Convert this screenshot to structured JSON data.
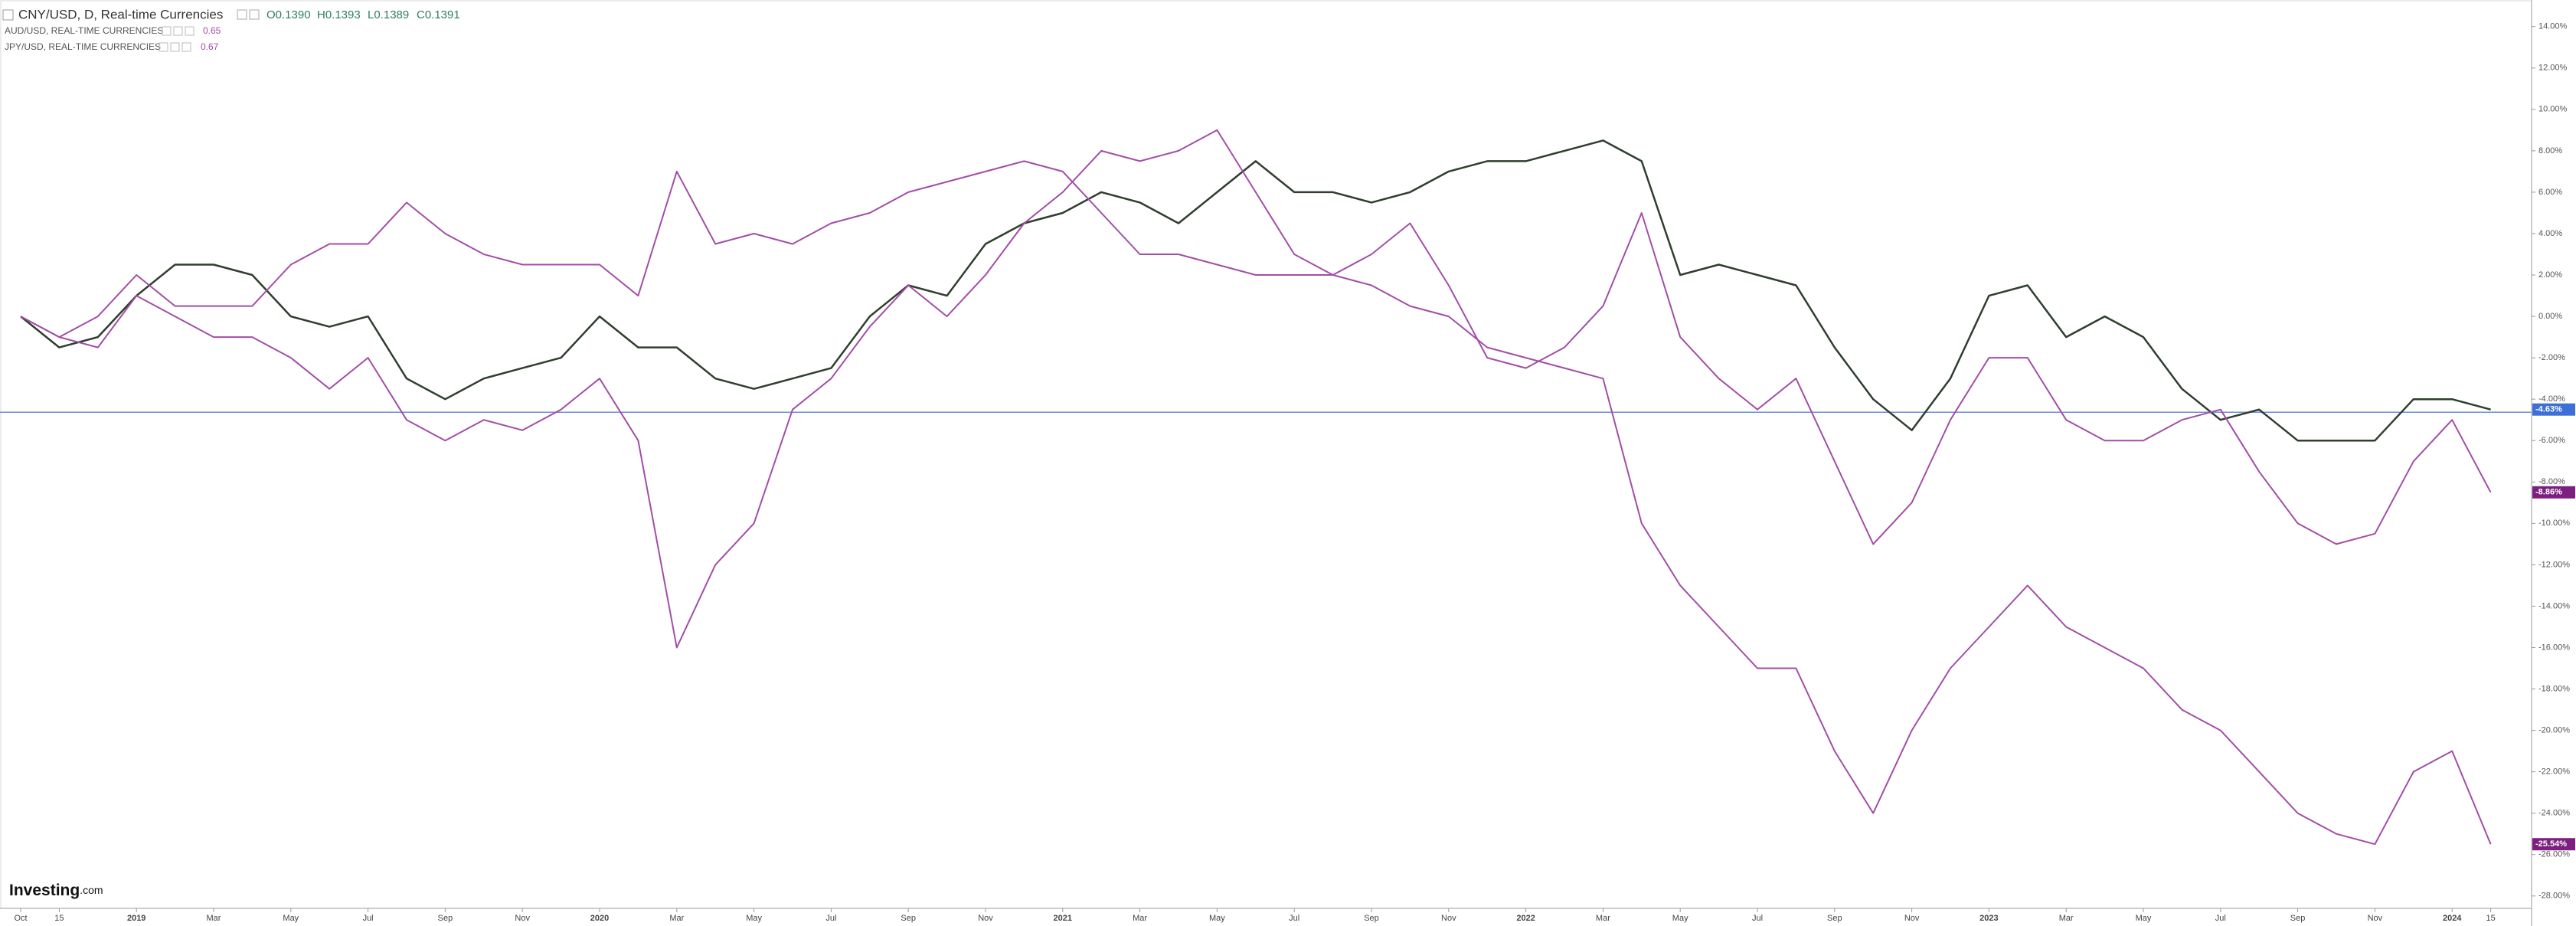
{
  "chart_data": {
    "type": "line",
    "watermark": [
      "Investing",
      ".com"
    ],
    "categories": [
      "Oct",
      "15",
      null,
      "2019",
      null,
      "Mar",
      null,
      "May",
      null,
      "Jul",
      null,
      "Sep",
      null,
      "Nov",
      null,
      "2020",
      null,
      "Mar",
      null,
      "May",
      null,
      "Jul",
      null,
      "Sep",
      null,
      "Nov",
      null,
      "2021",
      null,
      "Mar",
      null,
      "May",
      null,
      "Jul",
      null,
      "Sep",
      null,
      "Nov",
      null,
      "2022",
      null,
      "Mar",
      null,
      "May",
      null,
      "Jul",
      null,
      "Sep",
      null,
      "Nov",
      null,
      "2023",
      null,
      "Mar",
      null,
      "May",
      null,
      "Jul",
      null,
      "Sep",
      null,
      "Nov",
      null,
      "2024",
      "15"
    ],
    "ylim": [
      -28.6,
      15.1
    ],
    "yticks": [
      {
        "value": 14,
        "label": "14.00%"
      },
      {
        "value": 12,
        "label": "12.00%"
      },
      {
        "value": 10,
        "label": "10.00%"
      },
      {
        "value": 8,
        "label": "8.00%"
      },
      {
        "value": 6,
        "label": "6.00%"
      },
      {
        "value": 4,
        "label": "4.00%"
      },
      {
        "value": 2,
        "label": "2.00%"
      },
      {
        "value": 0,
        "label": "0.00%"
      },
      {
        "value": -2,
        "label": "-2.00%"
      },
      {
        "value": -4,
        "label": "-4.00%"
      },
      {
        "value": -6,
        "label": "-6.00%"
      },
      {
        "value": -8,
        "label": "-8.00%"
      },
      {
        "value": -10,
        "label": "-10.00%"
      },
      {
        "value": -12,
        "label": "-12.00%"
      },
      {
        "value": -14,
        "label": "-14.00%"
      },
      {
        "value": -16,
        "label": "-16.00%"
      },
      {
        "value": -18,
        "label": "-18.00%"
      },
      {
        "value": -20,
        "label": "-20.00%"
      },
      {
        "value": -22,
        "label": "-22.00%"
      },
      {
        "value": -24,
        "label": "-24.00%"
      },
      {
        "value": -26,
        "label": "-26.00%"
      },
      {
        "value": -28,
        "label": "-28.00%"
      }
    ],
    "price_line": {
      "value": -4.63,
      "label": "-4.63%",
      "color": "#6f8fd6"
    },
    "series": [
      {
        "name": "CNY/USD, D, Real-time Currencies",
        "color": "#2f3e2f",
        "width": 2.5,
        "ohlc": [
          "O0.1390",
          "H0.1393",
          "L0.1389",
          "C0.1391"
        ],
        "last_label": "-4.63%",
        "label_color": "#3d6fd8",
        "values": [
          0,
          -1.5,
          -1,
          1,
          2.5,
          2.5,
          2,
          0,
          -0.5,
          0,
          -3,
          -4,
          -3,
          -2.5,
          -2,
          0,
          -1.5,
          -1.5,
          -3,
          -3.5,
          -3,
          -2.5,
          0,
          1.5,
          1,
          3.5,
          4.5,
          5,
          6,
          5.5,
          4.5,
          6,
          7.5,
          6,
          6,
          5.5,
          6,
          7,
          7.5,
          7.5,
          8,
          8.5,
          7.5,
          2,
          2.5,
          2,
          1.5,
          -1.5,
          -4,
          -5.5,
          -3,
          1,
          1.5,
          -1,
          0,
          -1,
          -3.5,
          -5,
          -4.5,
          -6,
          -6,
          -6,
          -4,
          -4,
          -4.5
        ]
      },
      {
        "name": "AUD/USD, REAL-TIME CURRENCIES",
        "legend_value": "0.65",
        "color": "#a24ea6",
        "width": 2,
        "last_label": "-8.86%",
        "label_color": "#7d1f80",
        "values": [
          0,
          -1,
          -1.5,
          1,
          0,
          -1,
          -1,
          -2,
          -3.5,
          -2,
          -5,
          -6,
          -5,
          -5.5,
          -4.5,
          -3,
          -6,
          -16,
          -12,
          -10,
          -4.5,
          -3,
          -0.5,
          1.5,
          0,
          2,
          4.5,
          6,
          8,
          7.5,
          8,
          9,
          6,
          3,
          2,
          3,
          4.5,
          1.5,
          -2,
          -2.5,
          -1.5,
          0.5,
          5,
          -1,
          -3,
          -4.5,
          -3,
          -7,
          -11,
          -9,
          -5,
          -2,
          -2,
          -5,
          -6,
          -6,
          -5,
          -4.5,
          -7.5,
          -10,
          -11,
          -10.5,
          -7,
          -5,
          -8.5
        ]
      },
      {
        "name": "JPY/USD, REAL-TIME CURRENCIES",
        "legend_value": "0.67",
        "color": "#a24ea6",
        "width": 2,
        "last_label": "-25.54%",
        "label_color": "#7d1f80",
        "values": [
          0,
          -1,
          0,
          2,
          0.5,
          0.5,
          0.5,
          2.5,
          3.5,
          3.5,
          5.5,
          4,
          3,
          2.5,
          2.5,
          2.5,
          1,
          7,
          3.5,
          4,
          3.5,
          4.5,
          5,
          6,
          6.5,
          7,
          7.5,
          7,
          5,
          3,
          3,
          2.5,
          2,
          2,
          2,
          1.5,
          0.5,
          0,
          -1.5,
          -2,
          -2.5,
          -3,
          -10,
          -13,
          -15,
          -17,
          -17,
          -21,
          -24,
          -20,
          -17,
          -15,
          -13,
          -15,
          -16,
          -17,
          -19,
          -20,
          -22,
          -24,
          -25,
          -25.5,
          -22,
          -21,
          -25.5
        ]
      }
    ]
  }
}
